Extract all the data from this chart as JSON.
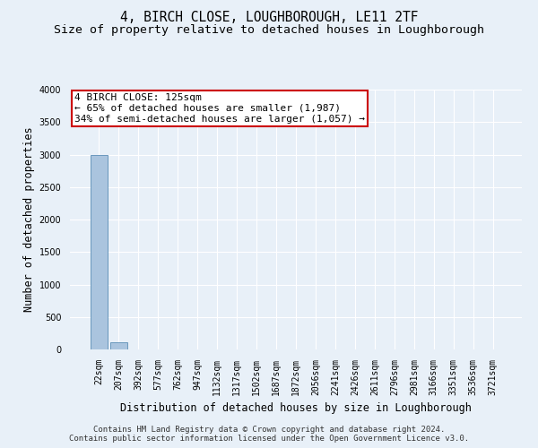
{
  "title": "4, BIRCH CLOSE, LOUGHBOROUGH, LE11 2TF",
  "subtitle": "Size of property relative to detached houses in Loughborough",
  "xlabel": "Distribution of detached houses by size in Loughborough",
  "ylabel": "Number of detached properties",
  "annotation_line1": "4 BIRCH CLOSE: 125sqm",
  "annotation_line2": "← 65% of detached houses are smaller (1,987)",
  "annotation_line3": "34% of semi-detached houses are larger (1,057) →",
  "footer_line1": "Contains HM Land Registry data © Crown copyright and database right 2024.",
  "footer_line2": "Contains public sector information licensed under the Open Government Licence v3.0.",
  "categories": [
    "22sqm",
    "207sqm",
    "392sqm",
    "577sqm",
    "762sqm",
    "947sqm",
    "1132sqm",
    "1317sqm",
    "1502sqm",
    "1687sqm",
    "1872sqm",
    "2056sqm",
    "2241sqm",
    "2426sqm",
    "2611sqm",
    "2796sqm",
    "2981sqm",
    "3166sqm",
    "3351sqm",
    "3536sqm",
    "3721sqm"
  ],
  "values": [
    3000,
    115,
    0,
    0,
    0,
    0,
    0,
    0,
    0,
    0,
    0,
    0,
    0,
    0,
    0,
    0,
    0,
    0,
    0,
    0,
    0
  ],
  "bar_color": "#aac4de",
  "bar_edge_color": "#5a8db5",
  "ylim": [
    0,
    4000
  ],
  "yticks": [
    0,
    500,
    1000,
    1500,
    2000,
    2500,
    3000,
    3500,
    4000
  ],
  "annotation_box_color": "#cc0000",
  "background_color": "#e8f0f8",
  "plot_bg_color": "#e8f0f8",
  "grid_color": "#ffffff",
  "title_fontsize": 10.5,
  "subtitle_fontsize": 9.5,
  "axis_label_fontsize": 8.5,
  "tick_fontsize": 7,
  "annotation_fontsize": 8,
  "footer_fontsize": 6.5
}
